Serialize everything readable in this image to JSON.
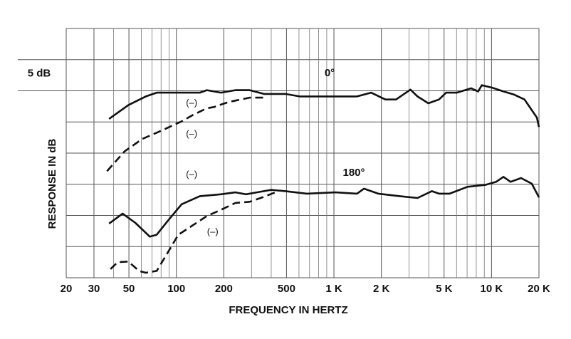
{
  "chart_data": {
    "type": "line",
    "x_label": "FREQUENCY IN HERTZ",
    "y_label": "RESPONSE IN dB",
    "xlog": true,
    "xlim": [
      20,
      20000
    ],
    "ylim": [
      0,
      40
    ],
    "yticks": [
      0,
      5,
      10,
      15,
      20,
      25,
      30,
      35,
      40
    ],
    "xticks": [
      20,
      30,
      50,
      100,
      200,
      500,
      {
        "value": 1000,
        "label": "1 K"
      },
      {
        "value": 2000,
        "label": "2 K"
      },
      {
        "value": 5000,
        "label": "5 K"
      },
      {
        "value": 10000,
        "label": "10 K"
      },
      {
        "value": 20000,
        "label": "20 K"
      }
    ],
    "xminor": [
      40,
      60,
      70,
      80,
      90,
      300,
      400,
      600,
      700,
      800,
      900,
      3000,
      4000,
      6000,
      7000,
      8000,
      9000
    ],
    "grid": true,
    "series": [
      {
        "name": "0°",
        "color": "#111111",
        "dashed": false,
        "x": [
          37.4,
          49.6,
          64,
          75,
          103,
          141,
          156,
          192,
          237,
          292,
          360,
          492,
          606,
          920,
          1400,
          1720,
          2120,
          2480,
          3060,
          3390,
          3970,
          4640,
          5150,
          6020,
          7420,
          8230,
          8670,
          10100,
          11900,
          13900,
          16200,
          18000,
          19400,
          20000
        ],
        "values": [
          25.5,
          27.7,
          29.1,
          29.7,
          29.7,
          29.7,
          30.1,
          29.7,
          30.1,
          30.1,
          29.5,
          29.5,
          29.1,
          29.1,
          29.1,
          29.7,
          28.6,
          28.6,
          30.2,
          29.1,
          28,
          28.6,
          29.7,
          29.7,
          30.4,
          29.9,
          30.9,
          30.5,
          29.9,
          29.4,
          28.6,
          26.9,
          25.7,
          24.2
        ]
      },
      {
        "name": "(–)",
        "color": "#111111",
        "dashed": true,
        "x": [
          36.3,
          47,
          61,
          83.5,
          108,
          127,
          156,
          173,
          214,
          292,
          360
        ],
        "values": [
          17.1,
          20.3,
          22.3,
          23.8,
          25.1,
          26.1,
          27.2,
          27.4,
          28.2,
          28.9,
          28.9
        ]
      },
      {
        "name": "180°",
        "color": "#111111",
        "dashed": false,
        "x": [
          37.4,
          45.6,
          55,
          67.8,
          75,
          88,
          108,
          141,
          192,
          237,
          277,
          324,
          399,
          492,
          673,
          1020,
          1400,
          1550,
          1910,
          2610,
          3390,
          4180,
          4640,
          5420,
          7040,
          9140,
          10700,
          11900,
          13200,
          15400,
          18000,
          20000
        ],
        "values": [
          8.7,
          10.3,
          8.8,
          6.6,
          6.9,
          9.1,
          11.8,
          13.1,
          13.4,
          13.7,
          13.4,
          13.7,
          14.1,
          13.9,
          13.5,
          13.7,
          13.5,
          14.3,
          13.5,
          13.1,
          12.8,
          13.9,
          13.5,
          13.5,
          14.6,
          14.9,
          15.4,
          16.2,
          15.4,
          16,
          15.1,
          12.9
        ]
      },
      {
        "name": "(-)",
        "color": "#111111",
        "dashed": true,
        "x": [
          38.2,
          42.4,
          49.6,
          58,
          64,
          75,
          88,
          103,
          120,
          156,
          192,
          237,
          292,
          360,
          443
        ],
        "values": [
          1.4,
          2.5,
          2.6,
          1.1,
          0.8,
          1.1,
          4,
          6.9,
          8,
          9.9,
          10.9,
          12,
          12.2,
          13,
          13.9
        ]
      }
    ],
    "annotations": [
      {
        "text": "5 dB",
        "x": 20,
        "y": 32.5
      },
      {
        "text": "(–)",
        "x": 125,
        "y": 28
      },
      {
        "text": "(–)",
        "x": 125,
        "y": 23
      },
      {
        "text": "(–)",
        "x": 125,
        "y": 16.5
      },
      {
        "text": "(–)",
        "x": 170,
        "y": 7.3
      }
    ]
  }
}
